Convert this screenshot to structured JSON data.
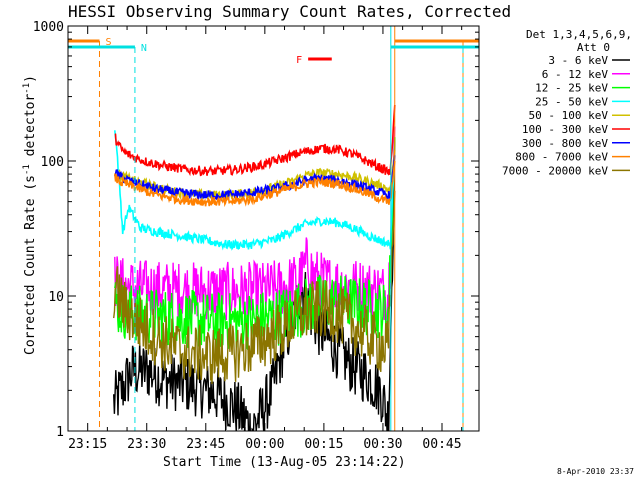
{
  "chart_data": {
    "type": "line",
    "title": "HESSI Observing Summary Count Rates, Corrected",
    "xlabel": "Start Time (13-Aug-05 23:14:22)",
    "ylabel": "Corrected Count Rate (s",
    "ylabel_sup1": "-1",
    "ylabel_mid": " detector",
    "ylabel_sup2": "-1",
    "ylabel_end": ")",
    "y_scale": "log",
    "ylim": [
      1,
      1000
    ],
    "y_ticks": [
      "1",
      "10",
      "100",
      "1000"
    ],
    "x_tick_labels": [
      "23:15",
      "23:30",
      "23:45",
      "00:00",
      "00:15",
      "00:30",
      "00:45"
    ],
    "x_tick_minutes": [
      0.6,
      15.6,
      30.6,
      45.6,
      60.6,
      75.6,
      90.6
    ],
    "xlim_minutes": [
      -4.4,
      100
    ],
    "footer": "8-Apr-2010 23:37",
    "legend_header": "Det 1,3,4,5,6,9,",
    "legend_sub": "Att 0",
    "flags": [
      {
        "label": "S",
        "color": "#ff8000",
        "t_start": -4.4,
        "t_end": 3.6,
        "t_start2": 78.6,
        "t_end2": 100
      },
      {
        "label": "N",
        "color": "#00e0e0",
        "t_start": -4.4,
        "t_end": 12.6,
        "t_start2": 77.6,
        "t_end2": 100
      },
      {
        "label": "F",
        "color": "#ff0000",
        "t_start": 56.6,
        "t_end": 62.6
      }
    ],
    "series": [
      {
        "name": "3 - 6 keV",
        "color": "#000000",
        "t": [
          6,
          7.2,
          7.2,
          12,
          16,
          20,
          26,
          33,
          38,
          41,
          42,
          45,
          47.5,
          50,
          53,
          55,
          57,
          59,
          61,
          64,
          68,
          72,
          75,
          77,
          78,
          78.6
        ],
        "values": [
          null,
          null,
          1.6,
          2.8,
          2.8,
          2.4,
          2.2,
          1.9,
          1.5,
          1.2,
          1.0,
          1.4,
          2.0,
          4.0,
          7.0,
          12.0,
          8.0,
          6.0,
          5.0,
          4.0,
          3.0,
          2.5,
          2.0,
          1.2,
          20,
          150
        ]
      },
      {
        "name": "6 - 12 keV",
        "color": "#ff00ff",
        "t": [
          6,
          7.5,
          9,
          12,
          18,
          25,
          32,
          40,
          46,
          50,
          53,
          55,
          56.5,
          58,
          61,
          66,
          70,
          74,
          77,
          78,
          78.6
        ],
        "values": [
          null,
          13,
          12,
          11.5,
          11.2,
          11,
          10.8,
          10.8,
          11,
          11.5,
          12.5,
          14,
          18,
          14,
          12.5,
          12,
          11.5,
          11,
          10.5,
          60,
          180
        ]
      },
      {
        "name": "12 - 25 keV",
        "color": "#00ff00",
        "t": [
          6,
          7.5,
          9,
          12,
          18,
          25,
          32,
          40,
          46,
          50,
          54,
          58,
          62,
          66,
          70,
          74,
          77,
          78,
          78.6
        ],
        "values": [
          null,
          9,
          8,
          7.5,
          7,
          6.8,
          6.5,
          6.5,
          6.8,
          7.2,
          8,
          8.8,
          9,
          8.8,
          8.4,
          8,
          7.5,
          40,
          150
        ]
      },
      {
        "name": "25 - 50 keV",
        "color": "#00ffff",
        "t": [
          6,
          7.5,
          8.5,
          9.5,
          11,
          14,
          18,
          24,
          30,
          36,
          42,
          48,
          52,
          56,
          60,
          64,
          68,
          72,
          76,
          77.5,
          78.6
        ],
        "values": [
          null,
          180,
          80,
          30,
          45,
          32,
          30,
          28,
          26,
          24,
          24,
          26,
          30,
          34,
          36,
          35,
          32,
          28,
          25,
          24,
          120
        ]
      },
      {
        "name": "50 - 100 keV",
        "color": "#d0c000",
        "t": [
          6,
          7.5,
          9,
          12,
          18,
          24,
          30,
          36,
          42,
          48,
          52,
          56,
          60,
          64,
          68,
          72,
          76,
          77.5,
          78.6
        ],
        "values": [
          null,
          85,
          78,
          72,
          64,
          58,
          56,
          56,
          58,
          64,
          70,
          78,
          82,
          80,
          76,
          70,
          64,
          60,
          120
        ]
      },
      {
        "name": "100 - 300 keV",
        "color": "#ff0000",
        "t": [
          6,
          7.5,
          8.5,
          10,
          12,
          15,
          20,
          26,
          32,
          38,
          44,
          50,
          55,
          60,
          64,
          68,
          72,
          76,
          77.5,
          78.6
        ],
        "values": [
          null,
          150,
          130,
          115,
          108,
          100,
          92,
          86,
          84,
          86,
          92,
          104,
          116,
          124,
          122,
          112,
          98,
          86,
          82,
          260
        ]
      },
      {
        "name": "300 - 800 keV",
        "color": "#0000ff",
        "t": [
          6,
          7.5,
          9,
          12,
          18,
          24,
          30,
          36,
          42,
          48,
          52,
          56,
          60,
          64,
          68,
          72,
          76,
          77.5,
          78.6
        ],
        "values": [
          null,
          82,
          76,
          70,
          62,
          58,
          56,
          56,
          58,
          62,
          66,
          72,
          74,
          72,
          68,
          62,
          57,
          55,
          110
        ]
      },
      {
        "name": "800 - 7000 keV",
        "color": "#ff8000",
        "t": [
          6,
          7.5,
          9,
          12,
          18,
          24,
          30,
          36,
          42,
          48,
          52,
          56,
          60,
          64,
          68,
          72,
          76,
          77.5,
          78.6
        ],
        "values": [
          null,
          75,
          70,
          65,
          56,
          52,
          50,
          50,
          52,
          58,
          63,
          68,
          70,
          68,
          63,
          57,
          51,
          49,
          100
        ]
      },
      {
        "name": "7000 - 20000 keV",
        "color": "#8b7500",
        "t": [
          6,
          7.2,
          8,
          9,
          10,
          12,
          16,
          20,
          26,
          32,
          38,
          44,
          50,
          54,
          58,
          62,
          66,
          70,
          74,
          77,
          78.6
        ],
        "values": [
          null,
          11,
          10.5,
          9.5,
          8,
          7,
          5.5,
          4.5,
          3.8,
          3.6,
          3.8,
          4.5,
          5.6,
          7,
          8,
          7.8,
          6.8,
          5.5,
          4.5,
          4,
          60
        ]
      }
    ]
  }
}
